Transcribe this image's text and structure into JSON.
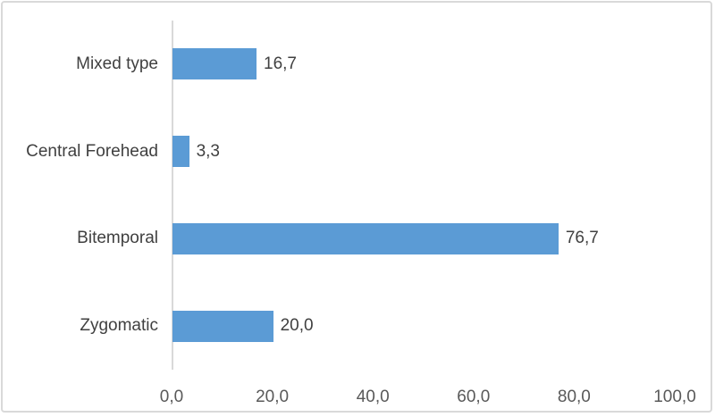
{
  "chart_data": {
    "type": "bar",
    "orientation": "horizontal",
    "title": "",
    "xlabel": "",
    "ylabel": "",
    "categories": [
      "Mixed type",
      "Central Forehead",
      "Bitemporal",
      "Zygomatic"
    ],
    "values": [
      16.7,
      3.3,
      76.7,
      20.0
    ],
    "value_labels": [
      "16,7",
      "3,3",
      "76,7",
      "20,0"
    ],
    "x_ticks": [
      0,
      20,
      40,
      60,
      80,
      100
    ],
    "x_tick_labels": [
      "0,0",
      "20,0",
      "40,0",
      "60,0",
      "80,0",
      "100,0"
    ],
    "xlim": [
      0,
      100
    ],
    "grid": false,
    "legend": false,
    "colors": {
      "bar": "#5B9BD5",
      "axis_line": "#D9D9D9",
      "frame_border": "#D9D9D9",
      "category_label_text": "#404040",
      "value_label_text": "#404040",
      "tick_label_text": "#595959",
      "background": "#FFFFFF"
    }
  }
}
